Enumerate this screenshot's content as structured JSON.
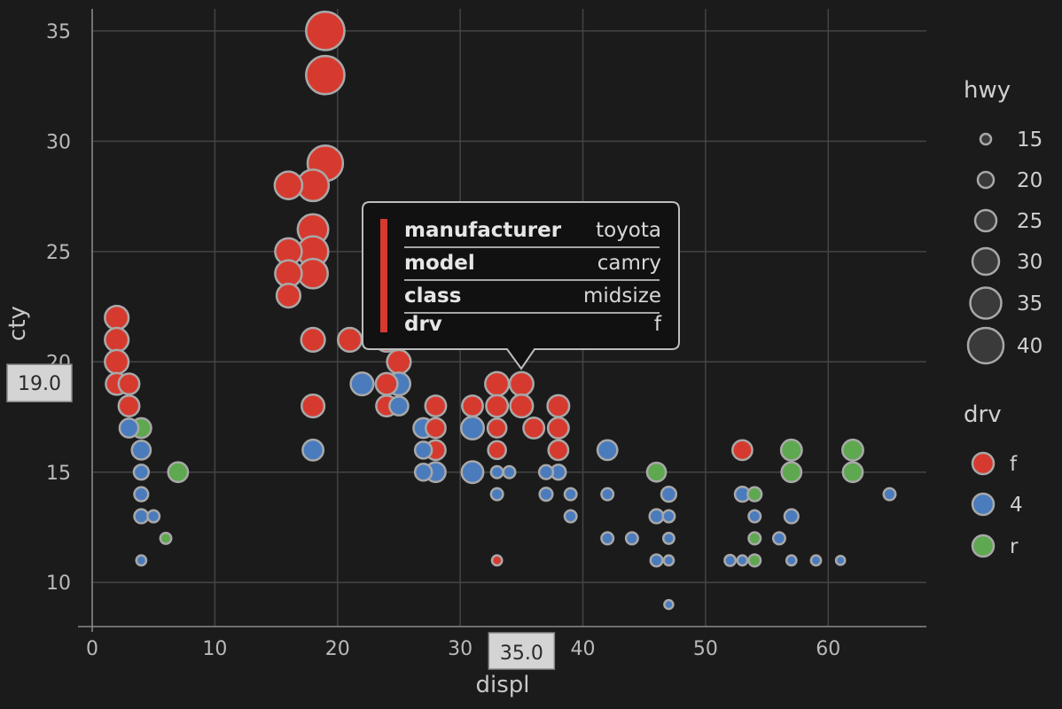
{
  "chart_data": {
    "type": "scatter",
    "title": "",
    "xlabel": "displ",
    "ylabel": "cty",
    "xlim": [
      0,
      68
    ],
    "ylim": [
      8,
      36
    ],
    "xticks": [
      0,
      10,
      20,
      30,
      40,
      50,
      60
    ],
    "yticks": [
      10,
      15,
      20,
      25,
      30,
      35
    ],
    "size_legend": {
      "title": "hwy",
      "values": [
        15,
        20,
        25,
        30,
        35,
        40
      ]
    },
    "color_legend": {
      "title": "drv",
      "entries": [
        {
          "label": "f",
          "color": "#d63a2f"
        },
        {
          "label": "4",
          "color": "#4a7bbd"
        },
        {
          "label": "r",
          "color": "#5ea84f"
        }
      ]
    },
    "crosshair": {
      "x": 35.0,
      "y": 19.0,
      "x_label": "35.0",
      "y_label": "19.0"
    },
    "tooltip": {
      "rows": [
        {
          "key": "manufacturer",
          "value": "toyota"
        },
        {
          "key": "model",
          "value": "camry"
        },
        {
          "key": "class",
          "value": "midsize"
        },
        {
          "key": "drv",
          "value": "f"
        }
      ]
    },
    "points": [
      {
        "x": 19,
        "y": 35,
        "hwy": 44,
        "drv": "f"
      },
      {
        "x": 19,
        "y": 33,
        "hwy": 44,
        "drv": "f"
      },
      {
        "x": 19,
        "y": 29,
        "hwy": 41,
        "drv": "f"
      },
      {
        "x": 16,
        "y": 28,
        "hwy": 33,
        "drv": "f"
      },
      {
        "x": 18,
        "y": 28,
        "hwy": 37,
        "drv": "f"
      },
      {
        "x": 18,
        "y": 26,
        "hwy": 36,
        "drv": "f"
      },
      {
        "x": 16,
        "y": 25,
        "hwy": 32,
        "drv": "f"
      },
      {
        "x": 18,
        "y": 25,
        "hwy": 36,
        "drv": "f"
      },
      {
        "x": 16,
        "y": 24,
        "hwy": 32,
        "drv": "f"
      },
      {
        "x": 18,
        "y": 24,
        "hwy": 35,
        "drv": "f"
      },
      {
        "x": 16,
        "y": 23,
        "hwy": 29,
        "drv": "f"
      },
      {
        "x": 2,
        "y": 22,
        "hwy": 29,
        "drv": "f"
      },
      {
        "x": 2,
        "y": 21,
        "hwy": 29,
        "drv": "f"
      },
      {
        "x": 18,
        "y": 21,
        "hwy": 29,
        "drv": "f"
      },
      {
        "x": 21,
        "y": 21,
        "hwy": 29,
        "drv": "f"
      },
      {
        "x": 24,
        "y": 21,
        "hwy": 29,
        "drv": "f"
      },
      {
        "x": 2,
        "y": 20,
        "hwy": 29,
        "drv": "f"
      },
      {
        "x": 25,
        "y": 20,
        "hwy": 29,
        "drv": "f"
      },
      {
        "x": 2,
        "y": 19,
        "hwy": 27,
        "drv": "f"
      },
      {
        "x": 3,
        "y": 19,
        "hwy": 26,
        "drv": "f"
      },
      {
        "x": 24,
        "y": 19,
        "hwy": 27,
        "drv": "f"
      },
      {
        "x": 33,
        "y": 19,
        "hwy": 29,
        "drv": "f"
      },
      {
        "x": 35,
        "y": 19,
        "hwy": 29,
        "drv": "f"
      },
      {
        "x": 22,
        "y": 19,
        "hwy": 28,
        "drv": "4"
      },
      {
        "x": 25,
        "y": 19,
        "hwy": 28,
        "drv": "4"
      },
      {
        "x": 3,
        "y": 18,
        "hwy": 26,
        "drv": "f"
      },
      {
        "x": 18,
        "y": 18,
        "hwy": 28,
        "drv": "f"
      },
      {
        "x": 24,
        "y": 18,
        "hwy": 26,
        "drv": "f"
      },
      {
        "x": 28,
        "y": 18,
        "hwy": 26,
        "drv": "f"
      },
      {
        "x": 31,
        "y": 18,
        "hwy": 26,
        "drv": "f"
      },
      {
        "x": 33,
        "y": 18,
        "hwy": 27,
        "drv": "f"
      },
      {
        "x": 35,
        "y": 18,
        "hwy": 28,
        "drv": "f"
      },
      {
        "x": 38,
        "y": 18,
        "hwy": 27,
        "drv": "f"
      },
      {
        "x": 25,
        "y": 18,
        "hwy": 24,
        "drv": "4"
      },
      {
        "x": 3,
        "y": 17,
        "hwy": 24,
        "drv": "4"
      },
      {
        "x": 4,
        "y": 17,
        "hwy": 25,
        "drv": "r"
      },
      {
        "x": 27,
        "y": 17,
        "hwy": 25,
        "drv": "4"
      },
      {
        "x": 28,
        "y": 17,
        "hwy": 25,
        "drv": "f"
      },
      {
        "x": 31,
        "y": 17,
        "hwy": 28,
        "drv": "4"
      },
      {
        "x": 33,
        "y": 17,
        "hwy": 24,
        "drv": "f"
      },
      {
        "x": 36,
        "y": 17,
        "hwy": 26,
        "drv": "f"
      },
      {
        "x": 38,
        "y": 17,
        "hwy": 26,
        "drv": "f"
      },
      {
        "x": 4,
        "y": 16,
        "hwy": 24,
        "drv": "4"
      },
      {
        "x": 18,
        "y": 16,
        "hwy": 26,
        "drv": "4"
      },
      {
        "x": 27,
        "y": 16,
        "hwy": 22,
        "drv": "4"
      },
      {
        "x": 28,
        "y": 16,
        "hwy": 25,
        "drv": "f"
      },
      {
        "x": 33,
        "y": 16,
        "hwy": 23,
        "drv": "f"
      },
      {
        "x": 38,
        "y": 16,
        "hwy": 25,
        "drv": "f"
      },
      {
        "x": 42,
        "y": 16,
        "hwy": 25,
        "drv": "4"
      },
      {
        "x": 53,
        "y": 16,
        "hwy": 25,
        "drv": "f"
      },
      {
        "x": 57,
        "y": 16,
        "hwy": 26,
        "drv": "r"
      },
      {
        "x": 62,
        "y": 16,
        "hwy": 26,
        "drv": "r"
      },
      {
        "x": 4,
        "y": 15,
        "hwy": 20,
        "drv": "4"
      },
      {
        "x": 7,
        "y": 15,
        "hwy": 25,
        "drv": "r"
      },
      {
        "x": 27,
        "y": 15,
        "hwy": 22,
        "drv": "4"
      },
      {
        "x": 28,
        "y": 15,
        "hwy": 25,
        "drv": "4"
      },
      {
        "x": 31,
        "y": 15,
        "hwy": 27,
        "drv": "4"
      },
      {
        "x": 33,
        "y": 15,
        "hwy": 17,
        "drv": "4"
      },
      {
        "x": 34,
        "y": 15,
        "hwy": 17,
        "drv": "4"
      },
      {
        "x": 37,
        "y": 15,
        "hwy": 19,
        "drv": "4"
      },
      {
        "x": 38,
        "y": 15,
        "hwy": 20,
        "drv": "4"
      },
      {
        "x": 46,
        "y": 15,
        "hwy": 24,
        "drv": "r"
      },
      {
        "x": 57,
        "y": 15,
        "hwy": 25,
        "drv": "r"
      },
      {
        "x": 62,
        "y": 15,
        "hwy": 25,
        "drv": "r"
      },
      {
        "x": 4,
        "y": 14,
        "hwy": 19,
        "drv": "4"
      },
      {
        "x": 33,
        "y": 14,
        "hwy": 17,
        "drv": "4"
      },
      {
        "x": 37,
        "y": 14,
        "hwy": 18,
        "drv": "4"
      },
      {
        "x": 39,
        "y": 14,
        "hwy": 17,
        "drv": "4"
      },
      {
        "x": 42,
        "y": 14,
        "hwy": 17,
        "drv": "4"
      },
      {
        "x": 47,
        "y": 14,
        "hwy": 20,
        "drv": "4"
      },
      {
        "x": 53,
        "y": 14,
        "hwy": 20,
        "drv": "4"
      },
      {
        "x": 54,
        "y": 14,
        "hwy": 19,
        "drv": "r"
      },
      {
        "x": 65,
        "y": 14,
        "hwy": 17,
        "drv": "4"
      },
      {
        "x": 4,
        "y": 13,
        "hwy": 19,
        "drv": "4"
      },
      {
        "x": 5,
        "y": 13,
        "hwy": 17,
        "drv": "4"
      },
      {
        "x": 39,
        "y": 13,
        "hwy": 17,
        "drv": "4"
      },
      {
        "x": 46,
        "y": 13,
        "hwy": 19,
        "drv": "4"
      },
      {
        "x": 47,
        "y": 13,
        "hwy": 17,
        "drv": "4"
      },
      {
        "x": 54,
        "y": 13,
        "hwy": 17,
        "drv": "4"
      },
      {
        "x": 57,
        "y": 13,
        "hwy": 19,
        "drv": "4"
      },
      {
        "x": 6,
        "y": 12,
        "hwy": 16,
        "drv": "r"
      },
      {
        "x": 42,
        "y": 12,
        "hwy": 17,
        "drv": "4"
      },
      {
        "x": 44,
        "y": 12,
        "hwy": 17,
        "drv": "4"
      },
      {
        "x": 47,
        "y": 12,
        "hwy": 16,
        "drv": "4"
      },
      {
        "x": 54,
        "y": 12,
        "hwy": 17,
        "drv": "r"
      },
      {
        "x": 56,
        "y": 12,
        "hwy": 17,
        "drv": "4"
      },
      {
        "x": 4,
        "y": 11,
        "hwy": 15,
        "drv": "4"
      },
      {
        "x": 33,
        "y": 11,
        "hwy": 15,
        "drv": "f"
      },
      {
        "x": 46,
        "y": 11,
        "hwy": 17,
        "drv": "4"
      },
      {
        "x": 47,
        "y": 11,
        "hwy": 15,
        "drv": "4"
      },
      {
        "x": 52,
        "y": 11,
        "hwy": 16,
        "drv": "4"
      },
      {
        "x": 53,
        "y": 11,
        "hwy": 15,
        "drv": "4"
      },
      {
        "x": 54,
        "y": 11,
        "hwy": 17,
        "drv": "r"
      },
      {
        "x": 57,
        "y": 11,
        "hwy": 15,
        "drv": "4"
      },
      {
        "x": 59,
        "y": 11,
        "hwy": 15,
        "drv": "4"
      },
      {
        "x": 61,
        "y": 11,
        "hwy": 14,
        "drv": "4"
      },
      {
        "x": 47,
        "y": 9,
        "hwy": 12,
        "drv": "4"
      }
    ]
  }
}
